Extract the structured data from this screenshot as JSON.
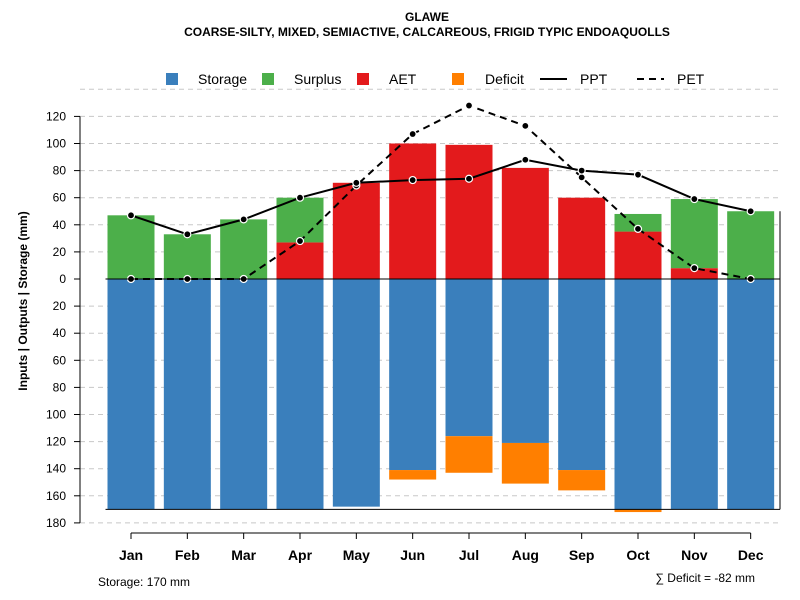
{
  "chart_data": {
    "type": "bar",
    "title": "GLAWE",
    "subtitle": "COARSE-SILTY, MIXED, SEMIACTIVE, CALCAREOUS, FRIGID TYPIC ENDOAQUOLLS",
    "ylabel": "Inputs | Outputs | Storage    (mm)",
    "categories": [
      "Jan",
      "Feb",
      "Mar",
      "Apr",
      "May",
      "Jun",
      "Jul",
      "Aug",
      "Sep",
      "Oct",
      "Nov",
      "Dec"
    ],
    "ylim": [
      -180,
      140
    ],
    "y_ticks": [
      -180,
      -160,
      -140,
      -120,
      -100,
      -80,
      -60,
      -40,
      -20,
      0,
      20,
      40,
      60,
      80,
      100,
      120
    ],
    "y_tick_labels": [
      "180",
      "160",
      "140",
      "120",
      "100",
      "80",
      "60",
      "40",
      "20",
      "0",
      "20",
      "40",
      "60",
      "80",
      "100",
      "120"
    ],
    "series": [
      {
        "name": "Storage",
        "color": "#3a7fbc",
        "values": [
          -170,
          -170,
          -170,
          -170,
          -168,
          -141,
          -116,
          -121,
          -141,
          -170,
          -170,
          -170
        ]
      },
      {
        "name": "Surplus",
        "color": "#4caf4a",
        "values": [
          47,
          33,
          44,
          33,
          0,
          0,
          0,
          0,
          0,
          13,
          51,
          50
        ]
      },
      {
        "name": "AET",
        "color": "#e31a1c",
        "values": [
          0,
          0,
          0,
          27,
          71,
          100,
          99,
          82,
          60,
          35,
          8,
          0
        ]
      },
      {
        "name": "Deficit",
        "color": "#ff7f00",
        "values": [
          0,
          0,
          0,
          0,
          0,
          -7,
          -27,
          -30,
          -15,
          -2,
          0,
          0
        ]
      },
      {
        "name": "PPT",
        "color": "#000000",
        "values": [
          47,
          33,
          44,
          60,
          71,
          73,
          74,
          88,
          80,
          77,
          59,
          50
        ]
      },
      {
        "name": "PET",
        "color": "#000000",
        "values": [
          0,
          0,
          0,
          28,
          69,
          107,
          128,
          113,
          75,
          37,
          8,
          0
        ]
      }
    ],
    "legend": [
      "Storage",
      "Surplus",
      "AET",
      "Deficit",
      "PPT",
      "PET"
    ],
    "legend_position": "top",
    "storage_note": "Storage: 170 mm",
    "deficit_note": "∑ Deficit = -82 mm"
  }
}
